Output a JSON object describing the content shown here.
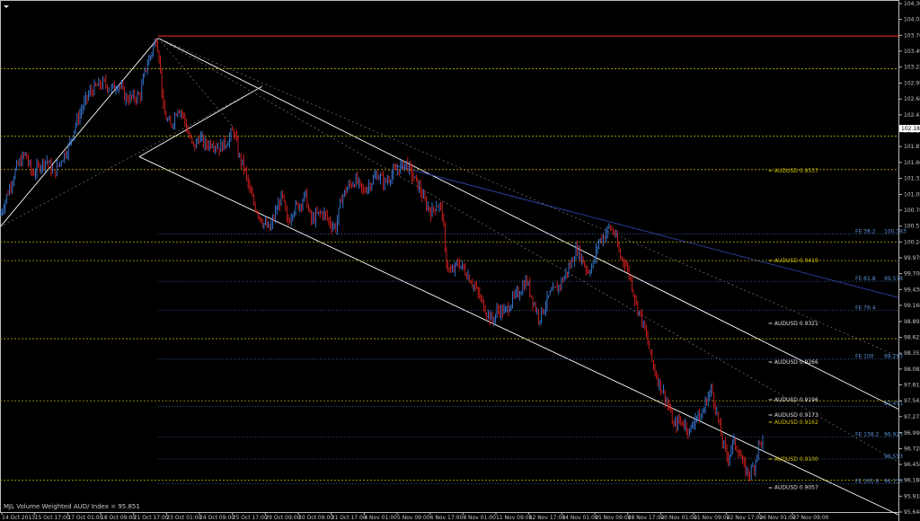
{
  "chart_data": {
    "type": "candlestick",
    "title": "",
    "caption": "MJL Volume Weighted AUD/ Index = 95.851",
    "ylim": [
      95.648,
      104.308
    ],
    "yticks": [
      104.308,
      104.038,
      103.768,
      103.498,
      103.228,
      102.953,
      102.683,
      102.413,
      102.143,
      101.873,
      101.603,
      101.333,
      101.058,
      100.788,
      100.518,
      100.248,
      99.978,
      99.708,
      99.438,
      99.168,
      98.893,
      98.623,
      98.353,
      98.083,
      97.813,
      97.543,
      97.273,
      96.998,
      96.728,
      96.458,
      96.188,
      95.918,
      95.648
    ],
    "current_price": "102.180",
    "xticks": [
      "14 Oct 2013",
      "15 Oct 17:00",
      "17 Oct 01:00",
      "18 Oct 09:00",
      "21 Oct 17:00",
      "23 Oct 01:00",
      "24 Oct 09:00",
      "25 Oct 17:00",
      "29 Oct 09:00",
      "30 Oct 09:00",
      "31 Oct 17:00",
      "4 Nov 01:00",
      "5 Nov 09:00",
      "6 Nov 17:00",
      "8 Nov 01:00",
      "11 Nov 09:00",
      "12 Nov 17:00",
      "14 Nov 01:00",
      "15 Nov 09:00",
      "18 Nov 17:00",
      "20 Nov 01:00",
      "21 Nov 09:00",
      "22 Nov 17:00",
      "26 Nov 01:00",
      "27 Nov 09:00"
    ],
    "price_path": [
      [
        0,
        100.7
      ],
      [
        10,
        101.15
      ],
      [
        18,
        101.5
      ],
      [
        28,
        101.75
      ],
      [
        36,
        101.4
      ],
      [
        44,
        101.55
      ],
      [
        52,
        101.65
      ],
      [
        60,
        101.4
      ],
      [
        68,
        101.65
      ],
      [
        76,
        101.85
      ],
      [
        84,
        102.25
      ],
      [
        92,
        102.55
      ],
      [
        100,
        102.8
      ],
      [
        108,
        102.9
      ],
      [
        116,
        102.95
      ],
      [
        124,
        102.85
      ],
      [
        132,
        102.95
      ],
      [
        140,
        102.7
      ],
      [
        148,
        102.7
      ],
      [
        156,
        102.75
      ],
      [
        162,
        103.2
      ],
      [
        168,
        103.45
      ],
      [
        174,
        103.72
      ],
      [
        178,
        103.3
      ],
      [
        182,
        102.45
      ],
      [
        190,
        102.2
      ],
      [
        198,
        102.55
      ],
      [
        204,
        102.4
      ],
      [
        210,
        102.05
      ],
      [
        216,
        101.85
      ],
      [
        222,
        102.05
      ],
      [
        228,
        101.9
      ],
      [
        236,
        101.95
      ],
      [
        244,
        101.85
      ],
      [
        252,
        101.95
      ],
      [
        260,
        102.15
      ],
      [
        266,
        101.7
      ],
      [
        272,
        101.5
      ],
      [
        278,
        101.1
      ],
      [
        284,
        100.85
      ],
      [
        292,
        100.6
      ],
      [
        300,
        100.45
      ],
      [
        308,
        100.8
      ],
      [
        314,
        101.05
      ],
      [
        320,
        100.55
      ],
      [
        326,
        100.8
      ],
      [
        334,
        100.9
      ],
      [
        340,
        101.05
      ],
      [
        346,
        100.6
      ],
      [
        352,
        100.7
      ],
      [
        360,
        100.75
      ],
      [
        368,
        100.55
      ],
      [
        374,
        100.5
      ],
      [
        380,
        101.0
      ],
      [
        388,
        101.2
      ],
      [
        396,
        101.3
      ],
      [
        404,
        101.1
      ],
      [
        412,
        101.25
      ],
      [
        420,
        101.4
      ],
      [
        428,
        101.25
      ],
      [
        436,
        101.4
      ],
      [
        444,
        101.5
      ],
      [
        452,
        101.6
      ],
      [
        460,
        101.35
      ],
      [
        466,
        101.2
      ],
      [
        472,
        100.95
      ],
      [
        480,
        100.75
      ],
      [
        486,
        100.9
      ],
      [
        492,
        100.8
      ],
      [
        496,
        99.95
      ],
      [
        502,
        99.7
      ],
      [
        510,
        99.9
      ],
      [
        518,
        99.75
      ],
      [
        526,
        99.55
      ],
      [
        534,
        99.3
      ],
      [
        542,
        99.05
      ],
      [
        548,
        98.9
      ],
      [
        554,
        99.1
      ],
      [
        562,
        99.05
      ],
      [
        570,
        99.25
      ],
      [
        578,
        99.4
      ],
      [
        586,
        99.6
      ],
      [
        592,
        99.3
      ],
      [
        600,
        98.95
      ],
      [
        606,
        99.15
      ],
      [
        612,
        99.35
      ],
      [
        620,
        99.45
      ],
      [
        628,
        99.65
      ],
      [
        636,
        99.9
      ],
      [
        642,
        100.15
      ],
      [
        648,
        99.95
      ],
      [
        654,
        99.75
      ],
      [
        660,
        99.85
      ],
      [
        666,
        100.25
      ],
      [
        672,
        100.35
      ],
      [
        678,
        100.5
      ],
      [
        684,
        100.4
      ],
      [
        690,
        100.0
      ],
      [
        696,
        99.9
      ],
      [
        702,
        99.6
      ],
      [
        708,
        99.2
      ],
      [
        714,
        98.95
      ],
      [
        720,
        98.6
      ],
      [
        726,
        98.2
      ],
      [
        732,
        97.9
      ],
      [
        738,
        97.7
      ],
      [
        744,
        97.45
      ],
      [
        750,
        97.1
      ],
      [
        756,
        97.2
      ],
      [
        762,
        97.15
      ],
      [
        768,
        97.0
      ],
      [
        774,
        97.3
      ],
      [
        780,
        97.25
      ],
      [
        786,
        97.55
      ],
      [
        792,
        97.75
      ],
      [
        798,
        97.3
      ],
      [
        804,
        96.85
      ],
      [
        810,
        96.55
      ],
      [
        816,
        96.85
      ],
      [
        822,
        96.7
      ],
      [
        828,
        96.4
      ],
      [
        834,
        96.3
      ],
      [
        840,
        96.45
      ],
      [
        844,
        96.8
      ],
      [
        850,
        96.85
      ]
    ],
    "horizontal_levels": [
      {
        "value": 103.755,
        "color": "#cc2222",
        "style": "solid",
        "start_x": 176
      },
      {
        "value": 103.2,
        "color": "#b8a800",
        "style": "dotted"
      },
      {
        "value": 102.05,
        "color": "#b8a800",
        "style": "dotted"
      },
      {
        "value": 101.48,
        "color": "#b8a800",
        "style": "dotted"
      },
      {
        "value": 100.248,
        "color": "#b8a800",
        "style": "dotted"
      },
      {
        "value": 99.93,
        "color": "#b8a800",
        "style": "dotted"
      },
      {
        "value": 98.6,
        "color": "#b8a800",
        "style": "dotted"
      },
      {
        "value": 97.543,
        "color": "#b8a800",
        "style": "dotted"
      },
      {
        "value": 96.188,
        "color": "#b8a800",
        "style": "dotted"
      }
    ],
    "fib_levels": [
      {
        "label": "FE 38.2",
        "value": "100.383",
        "y": 100.383
      },
      {
        "label": "FE 61.8",
        "value": "99.578",
        "y": 99.578
      },
      {
        "label": "FE 76.4",
        "value": "",
        "y": 99.08
      },
      {
        "label": "FE 100",
        "value": "98.253",
        "y": 98.253
      },
      {
        "label": "",
        "value": "97.451",
        "y": 97.45
      },
      {
        "label": "FE 138.2",
        "value": "96.923",
        "y": 96.923
      },
      {
        "label": "",
        "value": "96.553",
        "y": 96.553
      },
      {
        "label": "FE 161.8",
        "value": "96.133",
        "y": 96.133
      }
    ],
    "annotations": [
      {
        "text": "= AUDUSD  0.9537",
        "y": 101.46,
        "color": "#d8c400"
      },
      {
        "text": "= AUDUSD  0.9410",
        "y": 99.93,
        "color": "#d8c400"
      },
      {
        "text": "= AUDUSD  0.9321",
        "y": 98.86,
        "color": "#e0e0e0"
      },
      {
        "text": "= AUDUSD  0.9266",
        "y": 98.2,
        "color": "#e0e0e0"
      },
      {
        "text": "= AUDUSD  0.9196",
        "y": 97.56,
        "color": "#e0e0e0"
      },
      {
        "text": "= AUDUSD  0.9173",
        "y": 97.3,
        "color": "#e0e0e0"
      },
      {
        "text": "= AUDUSD  0.9162",
        "y": 97.18,
        "color": "#d8c400"
      },
      {
        "text": "= AUDUSD  0.9100",
        "y": 96.55,
        "color": "#d8c400"
      },
      {
        "text": "= AUDUSD  0.9057",
        "y": 96.07,
        "color": "#e0e0e0"
      }
    ],
    "channels": [
      {
        "name": "upper-pitchfork-a",
        "from": [
          0,
          100.5
        ],
        "to": [
          176,
          103.72
        ],
        "color": "#ffffff"
      },
      {
        "name": "upper-pitchfork-b",
        "from": [
          155,
          101.7
        ],
        "to": [
          292,
          102.9
        ],
        "color": "#ffffff"
      },
      {
        "name": "main-channel-top",
        "from": [
          176,
          103.72
        ],
        "to": [
          1000,
          97.4
        ],
        "color": "#ffffff"
      },
      {
        "name": "main-channel-mid",
        "from": [
          155,
          101.7
        ],
        "to": [
          1000,
          95.6
        ],
        "color": "#ffffff"
      },
      {
        "name": "blue-trend",
        "from": [
          440,
          101.55
        ],
        "to": [
          1000,
          99.3
        ],
        "color": "#2c44a8"
      }
    ]
  }
}
